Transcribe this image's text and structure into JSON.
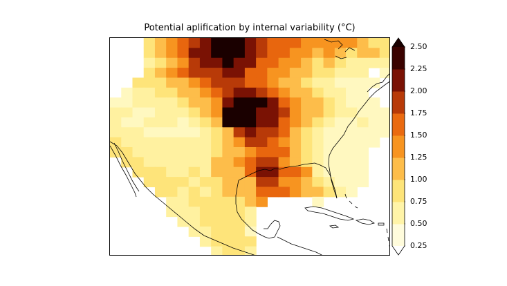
{
  "title": "Potential aplification by internal variability (°C)",
  "colorbar": {
    "ticks": [
      "0.25",
      "0.50",
      "0.75",
      "1.00",
      "1.25",
      "1.50",
      "1.75",
      "2.00",
      "2.25",
      "2.50"
    ],
    "colors": [
      "#fffcdc",
      "#fff4a8",
      "#fde479",
      "#fdbd4a",
      "#f79420",
      "#ea6a10",
      "#b83a08",
      "#7a1204",
      "#3a0200"
    ],
    "extend": "both",
    "over_color": "#1a0000",
    "under_color": "#ffffff"
  },
  "grid_rows": [
    "0003456789998766655555433",
    "0003456889998766554543443",
    "0002345788988665543432222",
    "0003456777886655443322201",
    "0033344567776654432211110",
    "0122334456788765443221100",
    "1122223445899986544321110",
    "2211222345999887544322111",
    "2112221234999886543211211",
    "2221111123478776432111111",
    "3222222223457765432111110",
    "3322222223445666432111100",
    "0332222224456775432111100",
    "0033322324446886652111100",
    "0003333233444775543211100",
    "0000332323444666544321000",
    "0000022333334500001000000",
    "0000022233332000000000000",
    "0000002233332000000000000",
    "0000000223331000000000000",
    "0000000023333000000000000",
    "0000000002332000000000000"
  ]
}
